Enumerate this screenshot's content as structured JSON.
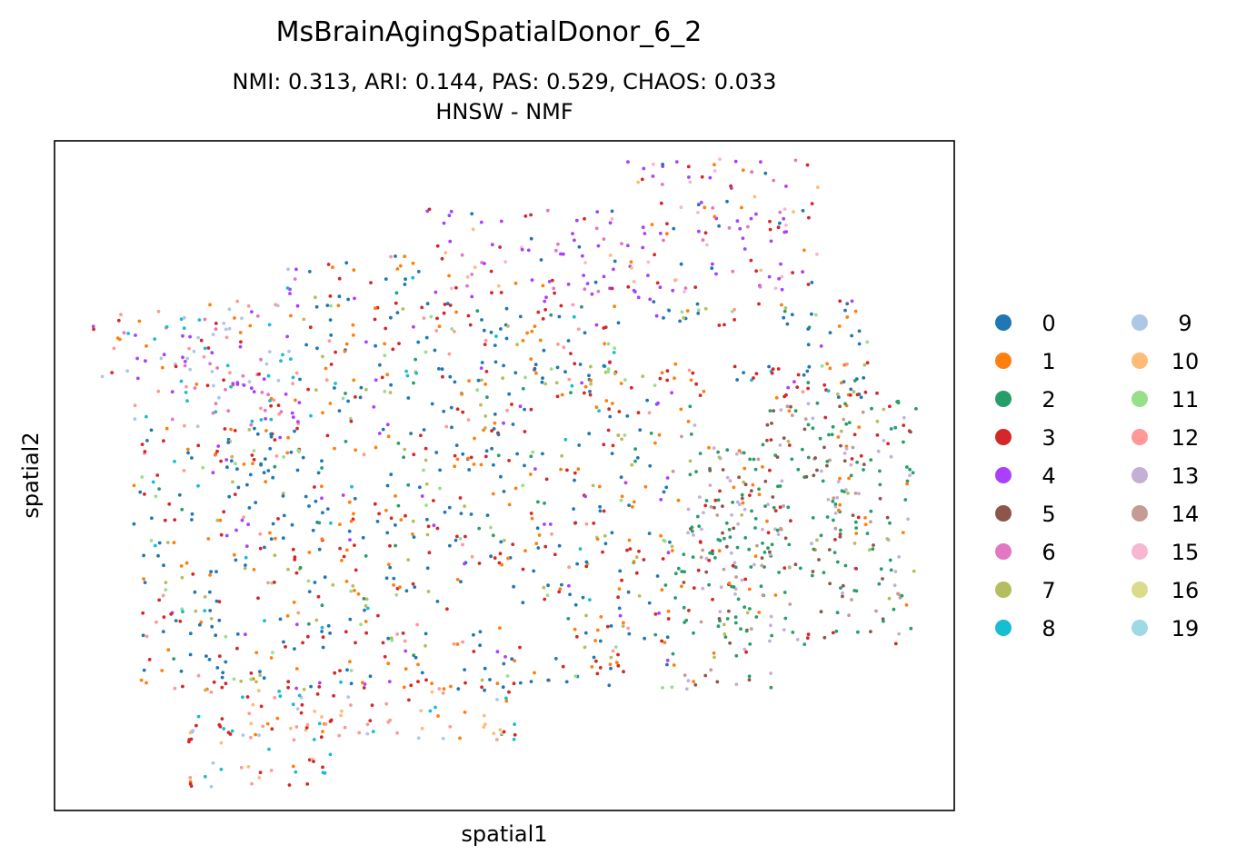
{
  "chart_data": {
    "type": "scatter",
    "title": "MsBrainAgingSpatialDonor_6_2",
    "subtitle_line1": "NMI: 0.313,  ARI: 0.144,  PAS: 0.529,  CHAOS: 0.033",
    "subtitle_line2": "HNSW - NMF",
    "xlabel": "spatial1",
    "ylabel": "spatial2",
    "xticks": false,
    "yticks": false,
    "grid": false,
    "legend_position": "right, outside plot, two columns",
    "legend": [
      {
        "label": "0",
        "color": "#1f77b4"
      },
      {
        "label": "1",
        "color": "#ff7f0e"
      },
      {
        "label": "2",
        "color": "#279e68"
      },
      {
        "label": "3",
        "color": "#d62728"
      },
      {
        "label": "4",
        "color": "#aa40fc"
      },
      {
        "label": "5",
        "color": "#8c564b"
      },
      {
        "label": "6",
        "color": "#e377c2"
      },
      {
        "label": "7",
        "color": "#b5bd61"
      },
      {
        "label": "8",
        "color": "#17becf"
      },
      {
        "label": "9",
        "color": "#aec7e8"
      },
      {
        "label": "10",
        "color": "#ffbb78"
      },
      {
        "label": "11",
        "color": "#98df8a"
      },
      {
        "label": "12",
        "color": "#ff9896"
      },
      {
        "label": "13",
        "color": "#c5b0d5"
      },
      {
        "label": "14",
        "color": "#c49c94"
      },
      {
        "label": "15",
        "color": "#f7b6d2"
      },
      {
        "label": "16",
        "color": "#dbdb8d"
      },
      {
        "label": "19",
        "color": "#9edae5"
      }
    ]
  }
}
